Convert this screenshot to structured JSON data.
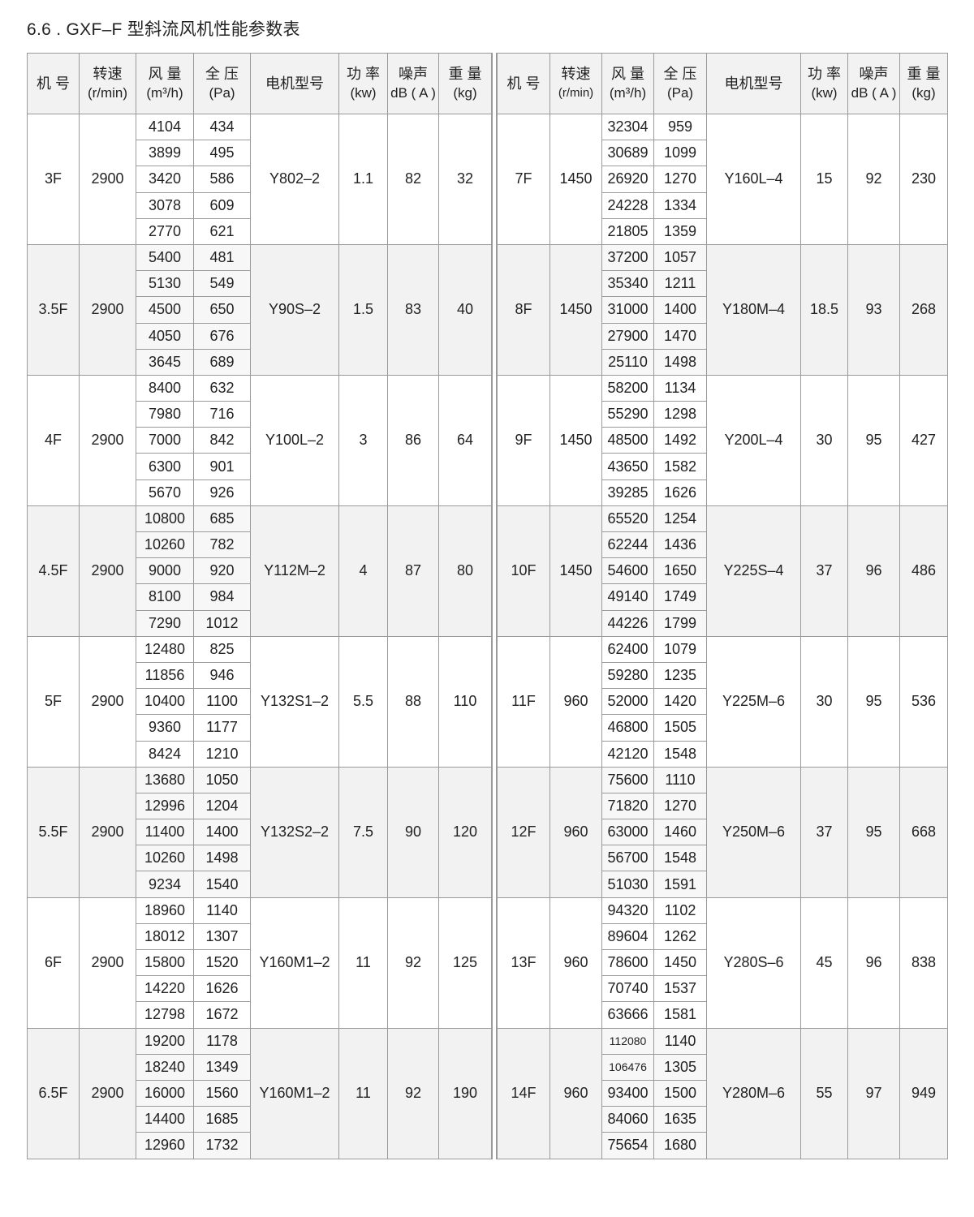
{
  "title": "6.6 . GXF–F 型斜流风机性能参数表",
  "headers": [
    {
      "label": "机 号",
      "unit": ""
    },
    {
      "label": "转速",
      "unit": "(r/min)"
    },
    {
      "label": "风 量",
      "unit": "(m³/h)"
    },
    {
      "label": "全 压",
      "unit": "(Pa)"
    },
    {
      "label": "电机型号",
      "unit": ""
    },
    {
      "label": "功 率",
      "unit": "(kw)"
    },
    {
      "label": "噪声",
      "unit": "dB ( A )"
    },
    {
      "label": "重 量",
      "unit": "(kg)"
    }
  ],
  "colors": {
    "border": "#9a9a9a",
    "shade": "#f2f2f2"
  },
  "left_table": [
    {
      "model": "3F",
      "speed": "2900",
      "flow": [
        "4104",
        "3899",
        "3420",
        "3078",
        "2770"
      ],
      "pressure": [
        "434",
        "495",
        "586",
        "609",
        "621"
      ],
      "motor": "Y802–2",
      "power": "1.1",
      "noise": "82",
      "weight": "32"
    },
    {
      "model": "3.5F",
      "speed": "2900",
      "flow": [
        "5400",
        "5130",
        "4500",
        "4050",
        "3645"
      ],
      "pressure": [
        "481",
        "549",
        "650",
        "676",
        "689"
      ],
      "motor": "Y90S–2",
      "power": "1.5",
      "noise": "83",
      "weight": "40"
    },
    {
      "model": "4F",
      "speed": "2900",
      "flow": [
        "8400",
        "7980",
        "7000",
        "6300",
        "5670"
      ],
      "pressure": [
        "632",
        "716",
        "842",
        "901",
        "926"
      ],
      "motor": "Y100L–2",
      "power": "3",
      "noise": "86",
      "weight": "64"
    },
    {
      "model": "4.5F",
      "speed": "2900",
      "flow": [
        "10800",
        "10260",
        "9000",
        "8100",
        "7290"
      ],
      "pressure": [
        "685",
        "782",
        "920",
        "984",
        "1012"
      ],
      "motor": "Y112M–2",
      "power": "4",
      "noise": "87",
      "weight": "80"
    },
    {
      "model": "5F",
      "speed": "2900",
      "flow": [
        "12480",
        "11856",
        "10400",
        "9360",
        "8424"
      ],
      "pressure": [
        "825",
        "946",
        "1100",
        "1177",
        "1210"
      ],
      "motor": "Y132S1–2",
      "power": "5.5",
      "noise": "88",
      "weight": "110"
    },
    {
      "model": "5.5F",
      "speed": "2900",
      "flow": [
        "13680",
        "12996",
        "11400",
        "10260",
        "9234"
      ],
      "pressure": [
        "1050",
        "1204",
        "1400",
        "1498",
        "1540"
      ],
      "motor": "Y132S2–2",
      "power": "7.5",
      "noise": "90",
      "weight": "120"
    },
    {
      "model": "6F",
      "speed": "2900",
      "flow": [
        "18960",
        "18012",
        "15800",
        "14220",
        "12798"
      ],
      "pressure": [
        "1140",
        "1307",
        "1520",
        "1626",
        "1672"
      ],
      "motor": "Y160M1–2",
      "power": "11",
      "noise": "92",
      "weight": "125"
    },
    {
      "model": "6.5F",
      "speed": "2900",
      "flow": [
        "19200",
        "18240",
        "16000",
        "14400",
        "12960"
      ],
      "pressure": [
        "1178",
        "1349",
        "1560",
        "1685",
        "1732"
      ],
      "motor": "Y160M1–2",
      "power": "11",
      "noise": "92",
      "weight": "190"
    }
  ],
  "right_table": [
    {
      "model": "7F",
      "speed": "1450",
      "flow": [
        "32304",
        "30689",
        "26920",
        "24228",
        "21805"
      ],
      "pressure": [
        "959",
        "1099",
        "1270",
        "1334",
        "1359"
      ],
      "motor": "Y160L–4",
      "power": "15",
      "noise": "92",
      "weight": "230"
    },
    {
      "model": "8F",
      "speed": "1450",
      "flow": [
        "37200",
        "35340",
        "31000",
        "27900",
        "25110"
      ],
      "pressure": [
        "1057",
        "1211",
        "1400",
        "1470",
        "1498"
      ],
      "motor": "Y180M–4",
      "power": "18.5",
      "noise": "93",
      "weight": "268"
    },
    {
      "model": "9F",
      "speed": "1450",
      "flow": [
        "58200",
        "55290",
        "48500",
        "43650",
        "39285"
      ],
      "pressure": [
        "1134",
        "1298",
        "1492",
        "1582",
        "1626"
      ],
      "motor": "Y200L–4",
      "power": "30",
      "noise": "95",
      "weight": "427"
    },
    {
      "model": "10F",
      "speed": "1450",
      "flow": [
        "65520",
        "62244",
        "54600",
        "49140",
        "44226"
      ],
      "pressure": [
        "1254",
        "1436",
        "1650",
        "1749",
        "1799"
      ],
      "motor": "Y225S–4",
      "power": "37",
      "noise": "96",
      "weight": "486"
    },
    {
      "model": "11F",
      "speed": "960",
      "flow": [
        "62400",
        "59280",
        "52000",
        "46800",
        "42120"
      ],
      "pressure": [
        "1079",
        "1235",
        "1420",
        "1505",
        "1548"
      ],
      "motor": "Y225M–6",
      "power": "30",
      "noise": "95",
      "weight": "536"
    },
    {
      "model": "12F",
      "speed": "960",
      "flow": [
        "75600",
        "71820",
        "63000",
        "56700",
        "51030"
      ],
      "pressure": [
        "1110",
        "1270",
        "1460",
        "1548",
        "1591"
      ],
      "motor": "Y250M–6",
      "power": "37",
      "noise": "95",
      "weight": "668"
    },
    {
      "model": "13F",
      "speed": "960",
      "flow": [
        "94320",
        "89604",
        "78600",
        "70740",
        "63666"
      ],
      "pressure": [
        "1102",
        "1262",
        "1450",
        "1537",
        "1581"
      ],
      "motor": "Y280S–6",
      "power": "45",
      "noise": "96",
      "weight": "838"
    },
    {
      "model": "14F",
      "speed": "960",
      "flow": [
        "112080",
        "106476",
        "93400",
        "84060",
        "75654"
      ],
      "pressure": [
        "1140",
        "1305",
        "1500",
        "1635",
        "1680"
      ],
      "motor": "Y280M–6",
      "power": "55",
      "noise": "97",
      "weight": "949"
    }
  ]
}
